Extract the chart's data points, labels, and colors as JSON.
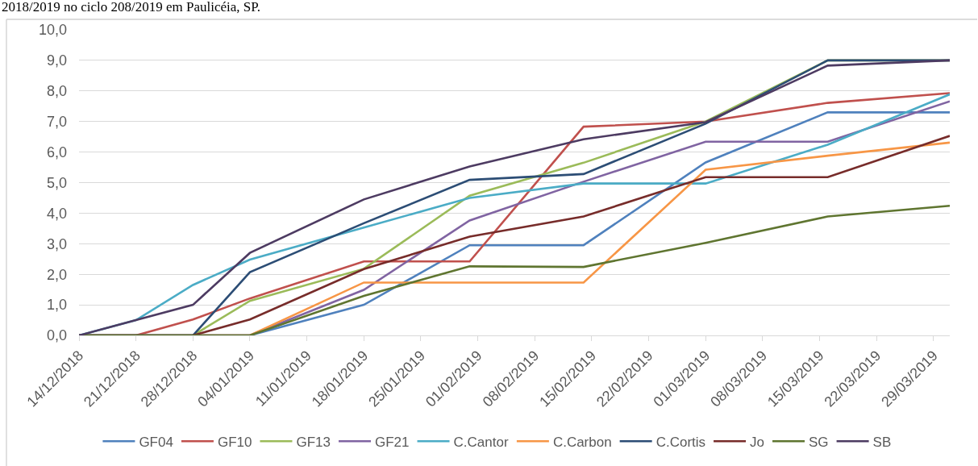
{
  "chart_data": {
    "type": "line",
    "title": "2018/2019 no ciclo 208/2019 em Paulicéia, SP.",
    "x": [
      "2018-12-14",
      "2018-12-21",
      "2018-12-28",
      "2019-01-04",
      "2019-01-18",
      "2019-01-31",
      "2019-02-14",
      "2019-03-01",
      "2019-03-16",
      "2019-03-31"
    ],
    "series": [
      {
        "name": "GF04",
        "color": "#4f81bd",
        "values": [
          null,
          null,
          0,
          0,
          1.0,
          2.95,
          2.95,
          5.66,
          7.3,
          7.3
        ]
      },
      {
        "name": "GF10",
        "color": "#c0504d",
        "values": [
          0,
          0,
          0.52,
          1.21,
          2.42,
          2.42,
          6.83,
          7.0,
          7.61,
          7.93
        ]
      },
      {
        "name": "GF13",
        "color": "#9bbb59",
        "values": [
          0,
          0,
          0,
          1.13,
          2.18,
          4.57,
          5.65,
          7.0,
          9.0,
          9.0
        ]
      },
      {
        "name": "GF21",
        "color": "#8064a2",
        "values": [
          0,
          0,
          0,
          0,
          1.49,
          3.76,
          5.03,
          6.34,
          6.34,
          7.66
        ]
      },
      {
        "name": "C.Cantor",
        "color": "#4bacc6",
        "values": [
          0,
          0.5,
          1.65,
          2.48,
          3.53,
          4.5,
          4.97,
          4.97,
          6.24,
          7.89
        ]
      },
      {
        "name": "C.Carbon",
        "color": "#f79646",
        "values": [
          null,
          null,
          0,
          0,
          1.73,
          1.73,
          1.73,
          5.42,
          5.88,
          6.31
        ]
      },
      {
        "name": "C.Cortis",
        "color": "#2c4d75",
        "values": [
          0,
          0,
          0,
          2.07,
          3.67,
          5.09,
          5.28,
          6.93,
          9.0,
          9.0
        ]
      },
      {
        "name": "Jo",
        "color": "#772c2a",
        "values": [
          0,
          0,
          0,
          0.52,
          2.17,
          3.23,
          3.89,
          5.18,
          5.18,
          6.53
        ]
      },
      {
        "name": "SG",
        "color": "#5f7530",
        "values": [
          0,
          0,
          0,
          0,
          1.29,
          2.26,
          2.24,
          3.03,
          3.89,
          4.24
        ]
      },
      {
        "name": "SB",
        "color": "#4d3b62",
        "values": [
          0,
          0.5,
          1.0,
          2.7,
          4.45,
          5.53,
          6.42,
          6.98,
          8.83,
          9.0
        ]
      }
    ],
    "xlim": [
      "2018-12-14",
      "2019-03-31"
    ],
    "xticks": [
      {
        "value": "2018-12-14",
        "label": "14/12/2018"
      },
      {
        "value": "2018-12-21",
        "label": "21/12/2018"
      },
      {
        "value": "2018-12-28",
        "label": "28/12/2018"
      },
      {
        "value": "2019-01-04",
        "label": "04/01/2019"
      },
      {
        "value": "2019-01-11",
        "label": "11/01/2019"
      },
      {
        "value": "2019-01-18",
        "label": "18/01/2019"
      },
      {
        "value": "2019-01-25",
        "label": "25/01/2019"
      },
      {
        "value": "2019-02-01",
        "label": "01/02/2019"
      },
      {
        "value": "2019-02-08",
        "label": "08/02/2019"
      },
      {
        "value": "2019-02-15",
        "label": "15/02/2019"
      },
      {
        "value": "2019-02-22",
        "label": "22/02/2019"
      },
      {
        "value": "2019-03-01",
        "label": "01/03/2019"
      },
      {
        "value": "2019-03-08",
        "label": "08/03/2019"
      },
      {
        "value": "2019-03-15",
        "label": "15/03/2019"
      },
      {
        "value": "2019-03-22",
        "label": "22/03/2019"
      },
      {
        "value": "2019-03-29",
        "label": "29/03/2019"
      }
    ],
    "ylim": [
      0,
      10
    ],
    "yticks": [
      {
        "value": 0,
        "label": "0,0"
      },
      {
        "value": 1,
        "label": "1,0"
      },
      {
        "value": 2,
        "label": "2,0"
      },
      {
        "value": 3,
        "label": "3,0"
      },
      {
        "value": 4,
        "label": "4,0"
      },
      {
        "value": 5,
        "label": "5,0"
      },
      {
        "value": 6,
        "label": "6,0"
      },
      {
        "value": 7,
        "label": "7,0"
      },
      {
        "value": 8,
        "label": "8,0"
      },
      {
        "value": 9,
        "label": "9,0"
      },
      {
        "value": 10,
        "label": "10,0"
      }
    ],
    "grid": "y",
    "legend": "bottom"
  }
}
